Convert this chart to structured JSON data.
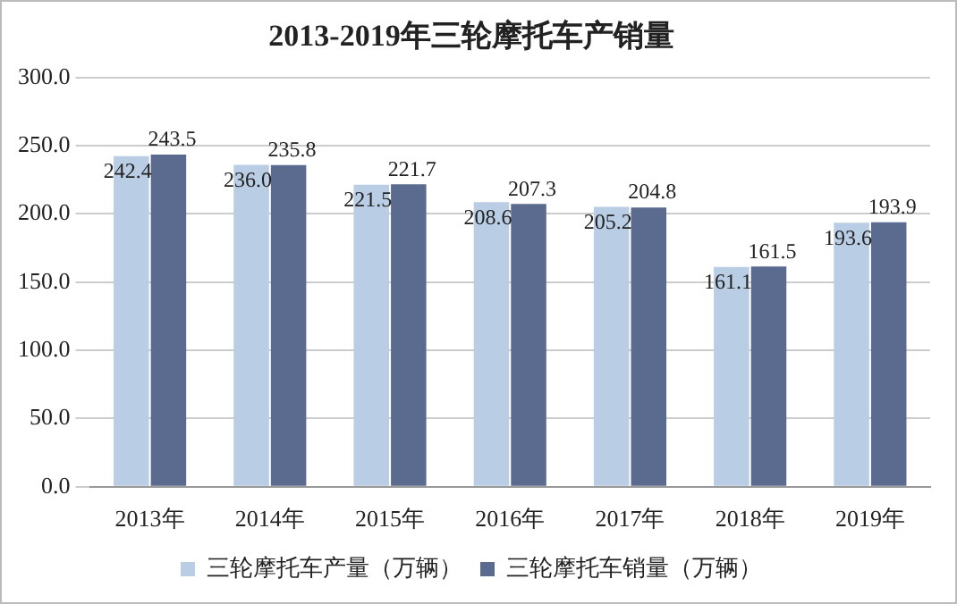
{
  "chart_data": {
    "type": "bar",
    "title": "2013-2019年三轮摩托车产销量",
    "categories": [
      "2013年",
      "2014年",
      "2015年",
      "2016年",
      "2017年",
      "2018年",
      "2019年"
    ],
    "series": [
      {
        "name": "三轮摩托车产量（万辆）",
        "color": "#b9cde5",
        "values": [
          242.4,
          236.0,
          221.5,
          208.6,
          205.2,
          161.1,
          193.6
        ],
        "value_labels": [
          "242.4",
          "236.0",
          "221.5",
          "208.6",
          "205.2",
          "161.1",
          "193.6"
        ]
      },
      {
        "name": "三轮摩托车销量（万辆）",
        "color": "#5b6b8f",
        "values": [
          243.5,
          235.8,
          221.7,
          207.3,
          204.8,
          161.5,
          193.9
        ],
        "value_labels": [
          "243.5",
          "235.8",
          "221.7",
          "207.3",
          "204.8",
          "161.5",
          "193.9"
        ]
      }
    ],
    "ylim": [
      0,
      300
    ],
    "yticks": [
      {
        "value": 0,
        "label": "0.0"
      },
      {
        "value": 50,
        "label": "50.0"
      },
      {
        "value": 100,
        "label": "100.0"
      },
      {
        "value": 150,
        "label": "150.0"
      },
      {
        "value": 200,
        "label": "200.0"
      },
      {
        "value": 250,
        "label": "250.0"
      },
      {
        "value": 300,
        "label": "300.0"
      }
    ],
    "grid": "y",
    "legend": "bottom"
  }
}
